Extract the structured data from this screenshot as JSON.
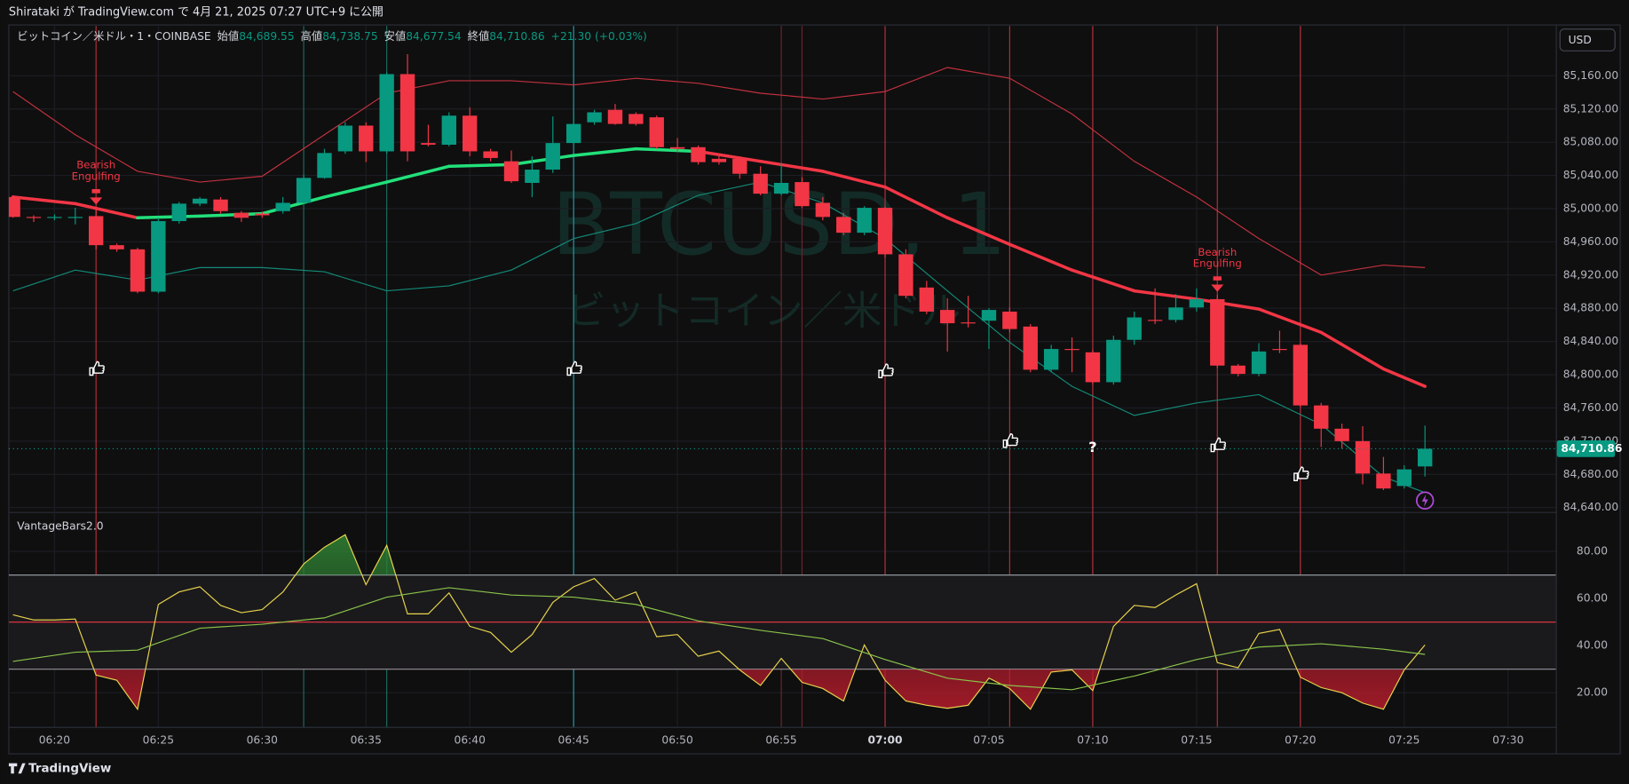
{
  "header": {
    "text": "Shirataki が TradingView.com で 4月 21, 2025 07:27 UTC+9 に公開"
  },
  "footer": {
    "brand": "TradingView"
  },
  "chart_data": [
    {
      "type": "candlestick",
      "symbol": "ビットコイン／米ドル・1・COINBASE",
      "ohlc_legend": [
        {
          "label": "始値",
          "value": "84,689.55"
        },
        {
          "label": "高値",
          "value": "84,738.75"
        },
        {
          "label": "安値",
          "value": "84,677.54"
        },
        {
          "label": "終値",
          "value": "84,710.86"
        }
      ],
      "change": "+21.30 (+0.03%)",
      "watermark": "BTCUSD, 1",
      "watermark_sub": "ビットコイン／米ドル",
      "currency": "USD",
      "up_color": "#089981",
      "down_color": "#f23645",
      "x": [
        "06:18",
        "06:19",
        "06:20",
        "06:21",
        "06:22",
        "06:23",
        "06:24",
        "06:25",
        "06:26",
        "06:27",
        "06:28",
        "06:29",
        "06:30",
        "06:31",
        "06:32",
        "06:33",
        "06:34",
        "06:35",
        "06:36",
        "06:37",
        "06:38",
        "06:39",
        "06:40",
        "06:41",
        "06:42",
        "06:43",
        "06:44",
        "06:45",
        "06:46",
        "06:47",
        "06:48",
        "06:49",
        "06:50",
        "06:51",
        "06:52",
        "06:53",
        "06:54",
        "06:55",
        "06:56",
        "06:57",
        "06:58",
        "06:59",
        "07:00",
        "07:01",
        "07:02",
        "07:03",
        "07:04",
        "07:05",
        "07:06",
        "07:07",
        "07:08",
        "07:09",
        "07:10",
        "07:11",
        "07:12",
        "07:13",
        "07:14",
        "07:15",
        "07:16",
        "07:17",
        "07:18",
        "07:19",
        "07:20",
        "07:21",
        "07:22",
        "07:23",
        "07:24",
        "07:25",
        "07:26"
      ],
      "open": [
        85014,
        84990,
        84990,
        84989,
        84991,
        84956,
        84951,
        84900,
        84985,
        85006,
        85011,
        84995,
        84994,
        84997,
        85007,
        85037,
        85069,
        85100,
        85069,
        85162,
        85079,
        85077,
        85112,
        85069,
        85057,
        85031,
        85047,
        85079,
        85104,
        85119,
        85114,
        85110,
        85074,
        85074,
        85060,
        85060,
        85042,
        85018,
        85032,
        85007,
        84990,
        84971,
        85001,
        84945,
        84905,
        84878,
        84863,
        84865,
        84876,
        84858,
        84806,
        84831,
        84827,
        84791,
        84842,
        84866,
        84866,
        84881,
        84891,
        84811,
        84801,
        84831,
        84836,
        84763,
        84735,
        84720,
        84681,
        84666,
        84689.55
      ],
      "high": [
        85016,
        84992,
        84993,
        85001,
        85001,
        84958,
        84953,
        84989,
        85008,
        85014,
        85014,
        84997,
        84996,
        85014,
        85041,
        85072,
        85104,
        85104,
        85164,
        85186,
        85101,
        85116,
        85122,
        85072,
        85070,
        85063,
        85111,
        85114,
        85119,
        85126,
        85116,
        85112,
        85085,
        85076,
        85066,
        85063,
        85051,
        85055,
        85038,
        85014,
        84995,
        85003,
        85003,
        84951,
        84913,
        84892,
        84895,
        84880,
        84881,
        84861,
        84836,
        84845,
        84830,
        84847,
        84876,
        84904,
        84897,
        84904,
        84896,
        84813,
        84838,
        84853,
        84838,
        84766,
        84741,
        84738,
        84701,
        84691,
        84738.75
      ],
      "low": [
        84989,
        84984,
        84986,
        84981,
        84951,
        84948,
        84898,
        84898,
        84982,
        85003,
        84994,
        84984,
        84989,
        84994,
        85006,
        85036,
        85066,
        85056,
        85066,
        85057,
        85075,
        85075,
        85063,
        85057,
        85031,
        85014,
        85043,
        85076,
        85101,
        85101,
        85100,
        85072,
        85069,
        85053,
        85053,
        85036,
        85016,
        85016,
        85001,
        84986,
        84968,
        84968,
        84941,
        84892,
        84873,
        84828,
        84857,
        84831,
        84851,
        84803,
        84803,
        84803,
        84788,
        84788,
        84836,
        84861,
        84863,
        84876,
        84808,
        84798,
        84798,
        84826,
        84761,
        84713,
        84711,
        84668,
        84661,
        84663,
        84677.54
      ],
      "close": [
        84990,
        84989,
        84990,
        84990,
        84956,
        84951,
        84900,
        84985,
        85006,
        85012,
        84997,
        84989,
        84992,
        85007,
        85037,
        85067,
        85100,
        85069,
        85162,
        85069,
        85077,
        85112,
        85069,
        85061,
        85033,
        85047,
        85079,
        85102,
        85116,
        85102,
        85102,
        85074,
        85072,
        85056,
        85056,
        85042,
        85018,
        85031,
        85003,
        84990,
        84971,
        85001,
        84945,
        84895,
        84876,
        84862,
        84862,
        84878,
        84855,
        84806,
        84831,
        84830,
        84791,
        84842,
        84869,
        84865,
        84881,
        84891,
        84811,
        84801,
        84828,
        84830,
        84763,
        84735,
        84720,
        84681,
        84663,
        84686,
        84710.86
      ],
      "basis": {
        "x": [
          "06:18",
          "06:21",
          "06:24",
          "06:27",
          "06:30",
          "06:33",
          "06:36",
          "06:39",
          "06:42",
          "06:45",
          "06:48",
          "06:51",
          "06:54",
          "06:57",
          "07:00",
          "07:03",
          "07:06",
          "07:09",
          "07:12",
          "07:15",
          "07:18",
          "07:21",
          "07:24",
          "07:26"
        ],
        "values": [
          85014,
          85006,
          84989,
          84991,
          84994,
          85014,
          85032,
          85051,
          85053,
          85064,
          85072,
          85069,
          85057,
          85045,
          85026,
          84989,
          84957,
          84926,
          84901,
          84891,
          84879,
          84851,
          84807,
          84786
        ],
        "colors": [
          "#f23645",
          "#f23645",
          "#22e07a",
          "#22e07a",
          "#22e07a",
          "#22e07a",
          "#22e07a",
          "#22e07a",
          "#22e07a",
          "#22e07a",
          "#22e07a",
          "#f23645",
          "#f23645",
          "#f23645",
          "#f23645",
          "#f23645",
          "#f23645",
          "#f23645",
          "#f23645",
          "#f23645",
          "#f23645",
          "#f23645",
          "#f23645",
          "#f23645"
        ]
      },
      "bands": [
        {
          "color": "#c2313f",
          "x": [
            "06:18",
            "06:21",
            "06:24",
            "06:27",
            "06:30",
            "06:33",
            "06:36",
            "06:39",
            "06:42",
            "06:45",
            "06:48",
            "06:51",
            "06:54",
            "06:57",
            "07:00",
            "07:03",
            "07:06",
            "07:09",
            "07:12",
            "07:15",
            "07:18",
            "07:21",
            "07:24",
            "07:26"
          ],
          "values": [
            85141,
            85089,
            85045,
            85032,
            85039,
            85089,
            85139,
            85154,
            85154,
            85149,
            85157,
            85151,
            85139,
            85132,
            85141,
            85170,
            85157,
            85114,
            85057,
            85014,
            84964,
            84920,
            84932,
            84929
          ]
        },
        {
          "color": "#138a78",
          "x": [
            "06:18",
            "06:21",
            "06:24",
            "06:27",
            "06:30",
            "06:33",
            "06:36",
            "06:39",
            "06:42",
            "06:45",
            "06:48",
            "06:51",
            "06:54",
            "06:57",
            "07:00",
            "07:03",
            "07:06",
            "07:09",
            "07:12",
            "07:15",
            "07:18",
            "07:21",
            "07:24",
            "07:26"
          ],
          "values": [
            84901,
            84926,
            84914,
            84929,
            84929,
            84924,
            84901,
            84907,
            84926,
            84964,
            84982,
            85016,
            85032,
            85007,
            84964,
            84901,
            84839,
            84786,
            84751,
            84766,
            84776,
            84740,
            84677,
            84658
          ]
        }
      ],
      "last_price": {
        "value": 84710.86,
        "label": "84,710.86"
      },
      "ylim": [
        84636,
        85220
      ],
      "yticks": [
        {
          "value": 84640,
          "label": "84,640.00"
        },
        {
          "value": 84680,
          "label": "84,680.00"
        },
        {
          "value": 84720,
          "label": "84,720.00"
        },
        {
          "value": 84760,
          "label": "84,760.00"
        },
        {
          "value": 84800,
          "label": "84,800.00"
        },
        {
          "value": 84840,
          "label": "84,840.00"
        },
        {
          "value": 84880,
          "label": "84,880.00"
        },
        {
          "value": 84920,
          "label": "84,920.00"
        },
        {
          "value": 84960,
          "label": "84,960.00"
        },
        {
          "value": 85000,
          "label": "85,000.00"
        },
        {
          "value": 85040,
          "label": "85,040.00"
        },
        {
          "value": 85080,
          "label": "85,080.00"
        },
        {
          "value": 85120,
          "label": "85,120.00"
        },
        {
          "value": 85160,
          "label": "85,160.00"
        }
      ],
      "xticks": [
        "06:20",
        "06:25",
        "06:30",
        "06:35",
        "06:40",
        "06:45",
        "06:50",
        "06:55",
        "07:00",
        "07:05",
        "07:10",
        "07:15",
        "07:20",
        "07:25",
        "07:30"
      ],
      "events": [
        {
          "time": "06:22",
          "color": "#f23645",
          "price": 84807
        },
        {
          "time": "06:45",
          "color": "#26c6da",
          "price": 84807
        },
        {
          "time": "07:00",
          "color": "#f23645",
          "price": 84804
        },
        {
          "time": "07:06",
          "color": "#f23645",
          "price": 84720
        },
        {
          "time": "07:10",
          "color": "#f23645",
          "price": 84712,
          "label": "?"
        },
        {
          "time": "07:16",
          "color": "#f23645",
          "price": 84715
        },
        {
          "time": "07:20",
          "color": "#f23645",
          "price": 84680
        }
      ],
      "guides": [
        {
          "time": "06:32",
          "color": "#1d6b60"
        },
        {
          "time": "06:36",
          "color": "#1d6b60"
        },
        {
          "time": "06:55",
          "color": "#6b2530"
        },
        {
          "time": "06:56",
          "color": "#6b2530"
        }
      ],
      "annotations": [
        {
          "time": "06:22",
          "lines": [
            "Bearish",
            "Engulfing"
          ]
        },
        {
          "time": "07:16",
          "lines": [
            "Bearish",
            "Engulfing"
          ]
        }
      ],
      "grid": true
    },
    {
      "type": "line",
      "title": "VantageBars2.0",
      "x": [
        "06:18",
        "06:19",
        "06:20",
        "06:21",
        "06:22",
        "06:23",
        "06:24",
        "06:25",
        "06:26",
        "06:27",
        "06:28",
        "06:29",
        "06:30",
        "06:31",
        "06:32",
        "06:33",
        "06:34",
        "06:35",
        "06:36",
        "06:37",
        "06:38",
        "06:39",
        "06:40",
        "06:41",
        "06:42",
        "06:43",
        "06:44",
        "06:45",
        "06:46",
        "06:47",
        "06:48",
        "06:49",
        "06:50",
        "06:51",
        "06:52",
        "06:53",
        "06:54",
        "06:55",
        "06:56",
        "06:57",
        "06:58",
        "06:59",
        "07:00",
        "07:01",
        "07:02",
        "07:03",
        "07:04",
        "07:05",
        "07:06",
        "07:07",
        "07:08",
        "07:09",
        "07:10",
        "07:11",
        "07:12",
        "07:13",
        "07:14",
        "07:15",
        "07:16",
        "07:17",
        "07:18",
        "07:19",
        "07:20",
        "07:21",
        "07:22",
        "07:23",
        "07:24",
        "07:25",
        "07:26"
      ],
      "series": [
        {
          "color": "#e8d44d",
          "values": [
            53.1,
            50.9,
            50.9,
            51.3,
            27.5,
            25.3,
            13.0,
            57.5,
            62.8,
            65.0,
            57.1,
            54.0,
            55.3,
            62.8,
            74.7,
            81.8,
            87.1,
            65.9,
            82.6,
            53.5,
            53.5,
            62.4,
            48.2,
            45.6,
            37.2,
            44.7,
            58.4,
            65.0,
            68.5,
            59.3,
            62.8,
            43.8,
            44.7,
            35.5,
            37.7,
            29.7,
            23.1,
            34.6,
            24.4,
            21.8,
            16.5,
            40.3,
            25.3,
            16.5,
            14.7,
            13.4,
            14.7,
            26.2,
            21.8,
            13.0,
            28.8,
            29.7,
            20.9,
            48.2,
            57.1,
            56.2,
            61.5,
            66.3,
            32.8,
            30.6,
            45.2,
            46.9,
            26.6,
            22.2,
            20.0,
            15.6,
            13.0,
            29.7,
            40.3
          ]
        },
        {
          "color": "#8bc34a",
          "x": [
            "06:18",
            "06:21",
            "06:24",
            "06:27",
            "06:30",
            "06:33",
            "06:36",
            "06:39",
            "06:42",
            "06:45",
            "06:48",
            "06:51",
            "06:54",
            "06:57",
            "07:00",
            "07:03",
            "07:06",
            "07:09",
            "07:12",
            "07:15",
            "07:18",
            "07:21",
            "07:24",
            "07:26"
          ],
          "values": [
            33.3,
            37.2,
            38.1,
            47.4,
            49.1,
            51.8,
            60.6,
            64.6,
            61.5,
            60.6,
            57.5,
            50.5,
            46.5,
            43.0,
            34.1,
            26.2,
            23.1,
            21.3,
            27.1,
            34.1,
            39.4,
            40.8,
            38.5,
            36.3
          ]
        }
      ],
      "levels": [
        {
          "value": 70,
          "color": "#9598a1"
        },
        {
          "value": 50,
          "color": "#f23645"
        },
        {
          "value": 30,
          "color": "#9598a1"
        }
      ],
      "ylim": [
        5.5,
        95.9
      ],
      "yticks": [
        {
          "value": 20,
          "label": "20.00"
        },
        {
          "value": 40,
          "label": "40.00"
        },
        {
          "value": 60,
          "label": "60.00"
        },
        {
          "value": 80,
          "label": "80.00"
        }
      ],
      "grid": true
    }
  ]
}
